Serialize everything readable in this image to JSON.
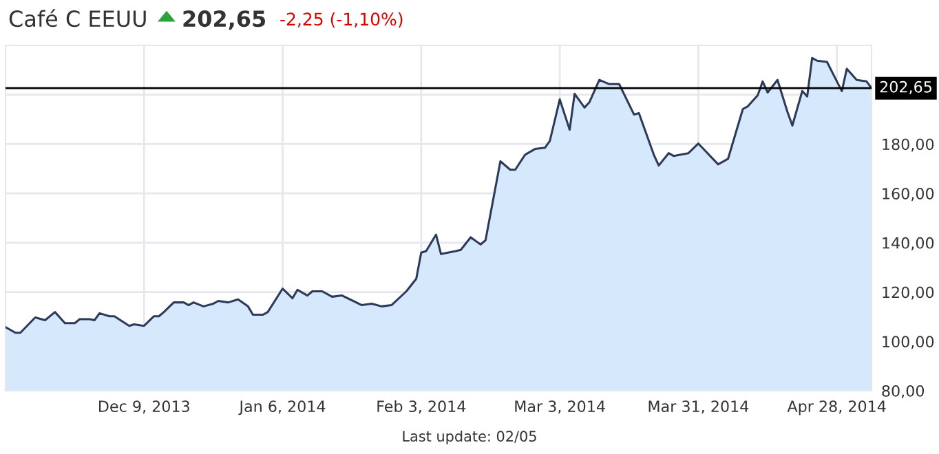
{
  "chart_data": {
    "type": "area",
    "title": "Café C EEUU",
    "annotations": [
      "202,65",
      "-2,25 (-1,10%)",
      "Last update: 02/05"
    ],
    "series": [
      {
        "color": "#2e3a59",
        "x": [
          "2013-11-11",
          "2013-11-13",
          "2013-11-14",
          "2013-11-17",
          "2013-11-19",
          "2013-11-21",
          "2013-11-23",
          "2013-11-25",
          "2013-11-26",
          "2013-11-28",
          "2013-11-29",
          "2013-11-30",
          "2013-12-02",
          "2013-12-03",
          "2013-12-06",
          "2013-12-07",
          "2013-12-09",
          "2013-12-11",
          "2013-12-12",
          "2013-12-13",
          "2013-12-15",
          "2013-12-17",
          "2013-12-18",
          "2013-12-19",
          "2013-12-21",
          "2013-12-23",
          "2013-12-24",
          "2013-12-26",
          "2013-12-28",
          "2013-12-30",
          "2013-12-31",
          "2014-01-02",
          "2014-01-03",
          "2014-01-06",
          "2014-01-08",
          "2014-01-09",
          "2014-01-11",
          "2014-01-12",
          "2014-01-14",
          "2014-01-16",
          "2014-01-18",
          "2014-01-22",
          "2014-01-24",
          "2014-01-26",
          "2014-01-28",
          "2014-01-31",
          "2014-02-02",
          "2014-02-03",
          "2014-02-04",
          "2014-02-06",
          "2014-02-07",
          "2014-02-10",
          "2014-02-11",
          "2014-02-13",
          "2014-02-15",
          "2014-02-16",
          "2014-02-19",
          "2014-02-21",
          "2014-02-22",
          "2014-02-24",
          "2014-02-26",
          "2014-02-28",
          "2014-03-01",
          "2014-03-03",
          "2014-03-05",
          "2014-03-06",
          "2014-03-08",
          "2014-03-09",
          "2014-03-11",
          "2014-03-13",
          "2014-03-15",
          "2014-03-18",
          "2014-03-19",
          "2014-03-20",
          "2014-03-22",
          "2014-03-23",
          "2014-03-25",
          "2014-03-26",
          "2014-03-29",
          "2014-03-31",
          "2014-04-04",
          "2014-04-06",
          "2014-04-09",
          "2014-04-10",
          "2014-04-12",
          "2014-04-13",
          "2014-04-14",
          "2014-04-16",
          "2014-04-18",
          "2014-04-19",
          "2014-04-21",
          "2014-04-22",
          "2014-04-23",
          "2014-04-24",
          "2014-04-26",
          "2014-04-28",
          "2014-04-29",
          "2014-04-30",
          "2014-05-02",
          "2014-05-04",
          "2014-05-05"
        ],
        "values": [
          105.8,
          103.5,
          103.5,
          109.7,
          108.6,
          111.9,
          107.4,
          107.4,
          109,
          109,
          108.6,
          111.4,
          110.2,
          110.2,
          106.3,
          106.9,
          106.3,
          110.2,
          110.2,
          111.9,
          115.8,
          115.8,
          114.7,
          115.8,
          114.2,
          115.3,
          116.4,
          115.8,
          117,
          114.2,
          110.8,
          110.8,
          111.9,
          121.4,
          117.5,
          120.9,
          118.6,
          120.3,
          120.3,
          118.1,
          118.6,
          114.7,
          115.3,
          114.2,
          114.7,
          120.3,
          125.4,
          136,
          136.6,
          143.3,
          135.4,
          136.6,
          137.1,
          142.2,
          139.3,
          141,
          173,
          169.6,
          169.6,
          175.7,
          178,
          178.5,
          181.3,
          198.1,
          185.8,
          200.4,
          194.8,
          197,
          206,
          204.3,
          204.3,
          192,
          192.5,
          186.9,
          175.7,
          171.3,
          176.3,
          175.2,
          176.3,
          180.2,
          171.8,
          174,
          194.2,
          195.3,
          199.8,
          205.4,
          200.9,
          206,
          193.1,
          187.5,
          201.5,
          199.3,
          214.9,
          213.8,
          213.3,
          205.4,
          201.5,
          210.5,
          206,
          205.4,
          202.65
        ]
      }
    ],
    "xlim": [
      "2013-11-11",
      "2014-05-05"
    ],
    "xticks": [
      {
        "value": "2013-12-09",
        "label": "Dec 9, 2013"
      },
      {
        "value": "2014-01-06",
        "label": "Jan 6, 2014"
      },
      {
        "value": "2014-02-03",
        "label": "Feb 3, 2014"
      },
      {
        "value": "2014-03-03",
        "label": "Mar 3, 2014"
      },
      {
        "value": "2014-03-31",
        "label": "Mar 31, 2014"
      },
      {
        "value": "2014-04-28",
        "label": "Apr 28, 2014"
      }
    ],
    "ylim": [
      80,
      220
    ],
    "yticks": [
      {
        "value": 80,
        "label": "80,00"
      },
      {
        "value": 100,
        "label": "100,00"
      },
      {
        "value": 120,
        "label": "120,00"
      },
      {
        "value": 140,
        "label": "140,00"
      },
      {
        "value": 160,
        "label": "160,00"
      },
      {
        "value": 180,
        "label": "180,00"
      },
      {
        "value": 200,
        "label": null
      }
    ],
    "ref_lines": [
      {
        "axis": "y",
        "value": 202.65,
        "label": "202,65",
        "color": "#000000"
      }
    ],
    "grid": true
  }
}
